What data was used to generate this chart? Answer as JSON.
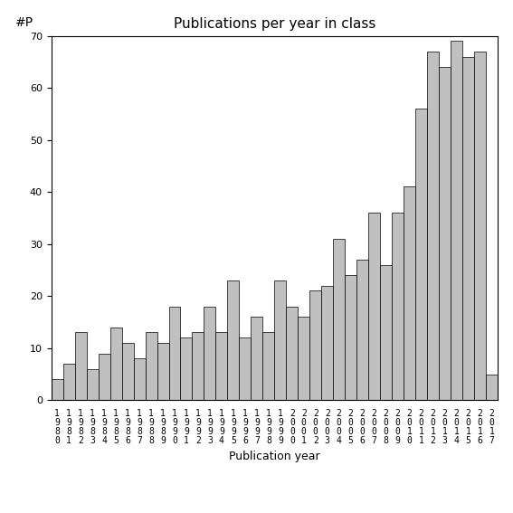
{
  "title": "Publications per year in class",
  "xlabel": "Publication year",
  "ylabel": "#P",
  "years": [
    "1980",
    "1981",
    "1982",
    "1983",
    "1984",
    "1985",
    "1986",
    "1987",
    "1988",
    "1989",
    "1990",
    "1991",
    "1992",
    "1993",
    "1994",
    "1995",
    "1996",
    "1997",
    "1998",
    "1999",
    "2000",
    "2001",
    "2002",
    "2003",
    "2004",
    "2005",
    "2006",
    "2007",
    "2008",
    "2009",
    "2010",
    "2011",
    "2012",
    "2013",
    "2014",
    "2015",
    "2016",
    "2017"
  ],
  "values": [
    4,
    7,
    13,
    6,
    9,
    14,
    11,
    8,
    13,
    11,
    18,
    12,
    13,
    18,
    13,
    23,
    12,
    16,
    13,
    23,
    18,
    16,
    21,
    22,
    31,
    24,
    27,
    36,
    26,
    36,
    41,
    56,
    67,
    64,
    69,
    66,
    67,
    5
  ],
  "bar_color": "#c0c0c0",
  "bar_edge_color": "#000000",
  "bar_edge_width": 0.5,
  "ylim": [
    0,
    70
  ],
  "yticks": [
    0,
    10,
    20,
    30,
    40,
    50,
    60,
    70
  ],
  "background_color": "#ffffff",
  "title_fontsize": 11,
  "axis_label_fontsize": 9,
  "tick_label_fontsize": 7
}
